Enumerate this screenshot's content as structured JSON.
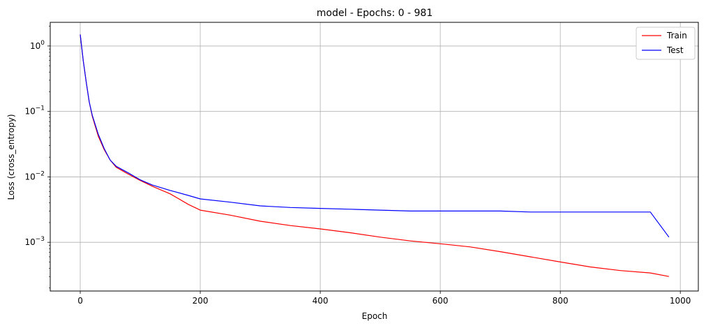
{
  "chart_data": {
    "type": "line",
    "title": "model - Epochs: 0 - 981",
    "xlabel": "Epoch",
    "ylabel": "Loss (cross_entropy)",
    "xlim": [
      -50,
      1030
    ],
    "ylim": [
      0.00018,
      2.3
    ],
    "yscale": "log",
    "grid": true,
    "legend_position": "top-right",
    "x_ticks": [
      0,
      200,
      400,
      600,
      800,
      1000
    ],
    "x_tick_labels": [
      "0",
      "200",
      "400",
      "600",
      "800",
      "1000"
    ],
    "y_ticks": [
      0.001,
      0.01,
      0.1,
      1
    ],
    "y_tick_labels": [
      {
        "base": "10",
        "exp": "−3"
      },
      {
        "base": "10",
        "exp": "−2"
      },
      {
        "base": "10",
        "exp": "−1"
      },
      {
        "base": "10",
        "exp": "0"
      }
    ],
    "series": [
      {
        "name": "Train",
        "color": "#ff0000",
        "x": [
          0,
          5,
          10,
          15,
          20,
          30,
          40,
          50,
          60,
          80,
          100,
          120,
          150,
          180,
          200,
          250,
          300,
          350,
          400,
          450,
          500,
          550,
          600,
          650,
          700,
          750,
          800,
          850,
          900,
          950,
          981
        ],
        "y": [
          1.5,
          0.6,
          0.28,
          0.14,
          0.085,
          0.042,
          0.026,
          0.018,
          0.014,
          0.011,
          0.0088,
          0.0072,
          0.0055,
          0.0038,
          0.0031,
          0.0026,
          0.0021,
          0.0018,
          0.0016,
          0.0014,
          0.0012,
          0.00105,
          0.00095,
          0.00085,
          0.00072,
          0.0006,
          0.0005,
          0.00042,
          0.00037,
          0.00034,
          0.0003
        ]
      },
      {
        "name": "Test",
        "color": "#0000ff",
        "x": [
          0,
          5,
          10,
          15,
          20,
          30,
          40,
          50,
          60,
          80,
          100,
          120,
          150,
          180,
          200,
          250,
          300,
          350,
          400,
          450,
          500,
          550,
          600,
          650,
          700,
          750,
          800,
          850,
          900,
          950,
          981
        ],
        "y": [
          1.5,
          0.6,
          0.28,
          0.14,
          0.088,
          0.045,
          0.027,
          0.018,
          0.0145,
          0.0115,
          0.009,
          0.0075,
          0.0062,
          0.0052,
          0.0046,
          0.0041,
          0.0036,
          0.0034,
          0.0033,
          0.0032,
          0.0031,
          0.003,
          0.003,
          0.003,
          0.003,
          0.0029,
          0.0029,
          0.0029,
          0.0029,
          0.0029,
          0.0012
        ]
      }
    ]
  }
}
